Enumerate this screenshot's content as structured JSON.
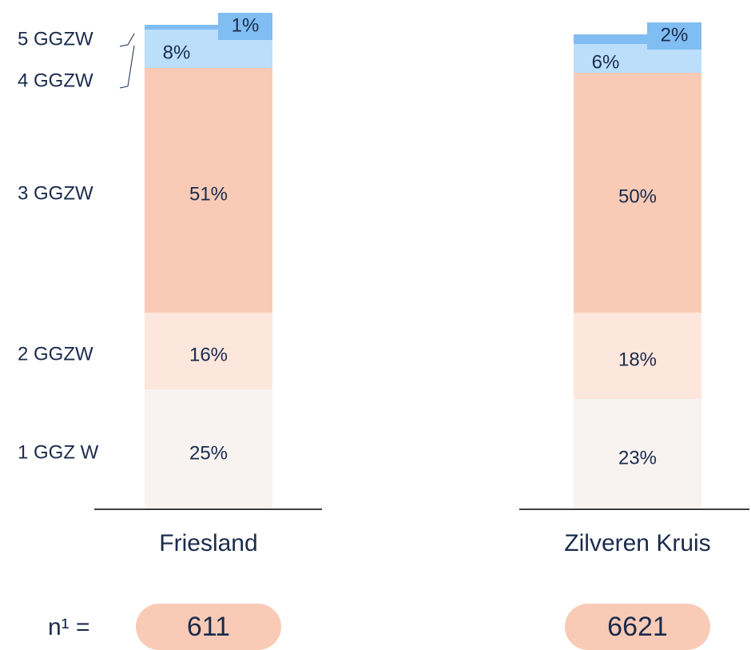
{
  "chart_data": {
    "type": "stacked_bar",
    "categories": [
      "Friesland",
      "Zilveren Kruis"
    ],
    "series": [
      {
        "name": "1 GGZ W",
        "color": "#f8f3f0",
        "values": [
          25,
          23
        ],
        "value_labels": [
          "25%",
          "23%"
        ]
      },
      {
        "name": "2 GGZW",
        "color": "#fde6dc",
        "values": [
          16,
          18
        ],
        "value_labels": [
          "16%",
          "18%"
        ]
      },
      {
        "name": "3 GGZW",
        "color": "#f9cbb6",
        "values": [
          51,
          50
        ],
        "value_labels": [
          "51%",
          "50%"
        ]
      },
      {
        "name": "4 GGZW",
        "color": "#bbdefb",
        "values": [
          8,
          6
        ],
        "value_labels": [
          "8%",
          "6%"
        ]
      },
      {
        "name": "5 GGZW",
        "color": "#7fbdf2",
        "values": [
          1,
          2
        ],
        "value_labels": [
          "1%",
          "2%"
        ]
      }
    ],
    "n_label": "n¹ =",
    "n_values": [
      611,
      6621
    ],
    "n_color": "#f9cbb6"
  }
}
